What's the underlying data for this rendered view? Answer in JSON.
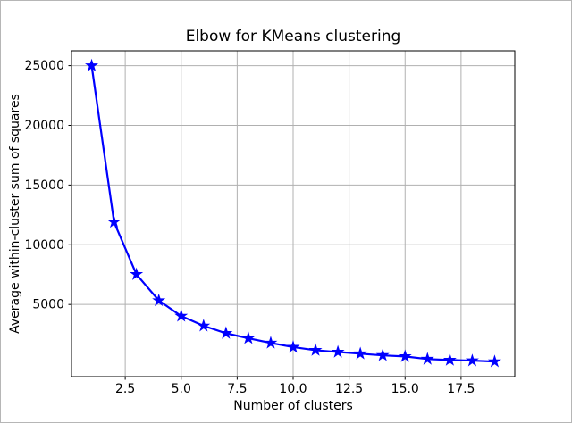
{
  "figure": {
    "background": "#ffffff",
    "border_color": "#b6b6b6"
  },
  "chart_data": {
    "type": "line",
    "title": "Elbow for KMeans clustering",
    "xlabel": "Number of clusters",
    "ylabel": "Average within-cluster sum of squares",
    "x": [
      1,
      2,
      3,
      4,
      5,
      6,
      7,
      8,
      9,
      10,
      11,
      12,
      13,
      14,
      15,
      16,
      17,
      18,
      19
    ],
    "y": [
      25000,
      11900,
      7520,
      5330,
      4030,
      3210,
      2590,
      2170,
      1780,
      1430,
      1170,
      1020,
      880,
      740,
      650,
      430,
      350,
      300,
      220
    ],
    "line_color": "#0000ff",
    "line_width": 2.2,
    "marker": "star",
    "marker_size": 5,
    "xlim": [
      0.1,
      19.9
    ],
    "ylim": [
      -1040,
      26240
    ],
    "x_ticks": [
      2.5,
      5.0,
      7.5,
      10.0,
      12.5,
      15.0,
      17.5
    ],
    "x_tick_labels": [
      "2.5",
      "5.0",
      "7.5",
      "10.0",
      "12.5",
      "15.0",
      "17.5"
    ],
    "y_ticks": [
      5000,
      10000,
      15000,
      20000,
      25000
    ],
    "y_tick_labels": [
      "5000",
      "10000",
      "15000",
      "20000",
      "25000"
    ],
    "grid": true,
    "grid_color": "#b0b0b0",
    "spine_color": "#000000",
    "legend": "none"
  }
}
